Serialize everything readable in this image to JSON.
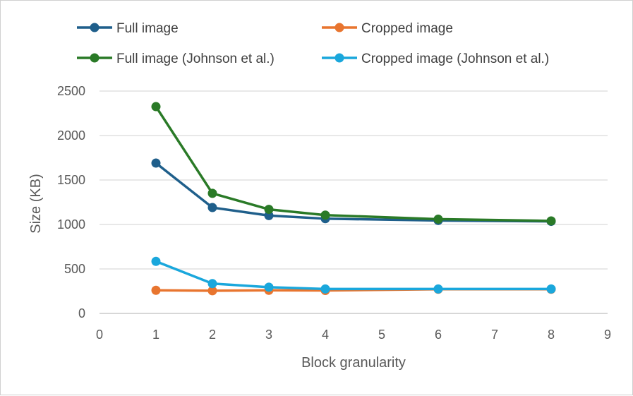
{
  "chart_data": {
    "type": "line",
    "title": "",
    "xlabel": "Block granularity",
    "ylabel": "Size (KB)",
    "xlim": [
      0,
      9
    ],
    "ylim": [
      0,
      2500
    ],
    "x_ticks": [
      0,
      1,
      2,
      3,
      4,
      5,
      6,
      7,
      8,
      9
    ],
    "y_ticks": [
      0,
      500,
      1000,
      1500,
      2000,
      2500
    ],
    "grid": "horizontal",
    "legend_position": "top",
    "x": [
      1,
      2,
      3,
      4,
      6,
      8
    ],
    "series": [
      {
        "name": "Full image",
        "color": "#1f5f8b",
        "values": [
          1690,
          1190,
          1100,
          1065,
          1045,
          1035
        ]
      },
      {
        "name": "Cropped image",
        "color": "#e8752f",
        "values": [
          260,
          255,
          260,
          258,
          272,
          272
        ]
      },
      {
        "name": "Full image (Johnson et al.)",
        "color": "#2a7a27",
        "values": [
          2325,
          1350,
          1170,
          1105,
          1060,
          1040
        ]
      },
      {
        "name": "Cropped image (Johnson et al.)",
        "color": "#1aa7dc",
        "values": [
          585,
          335,
          295,
          275,
          275,
          275
        ]
      }
    ]
  }
}
